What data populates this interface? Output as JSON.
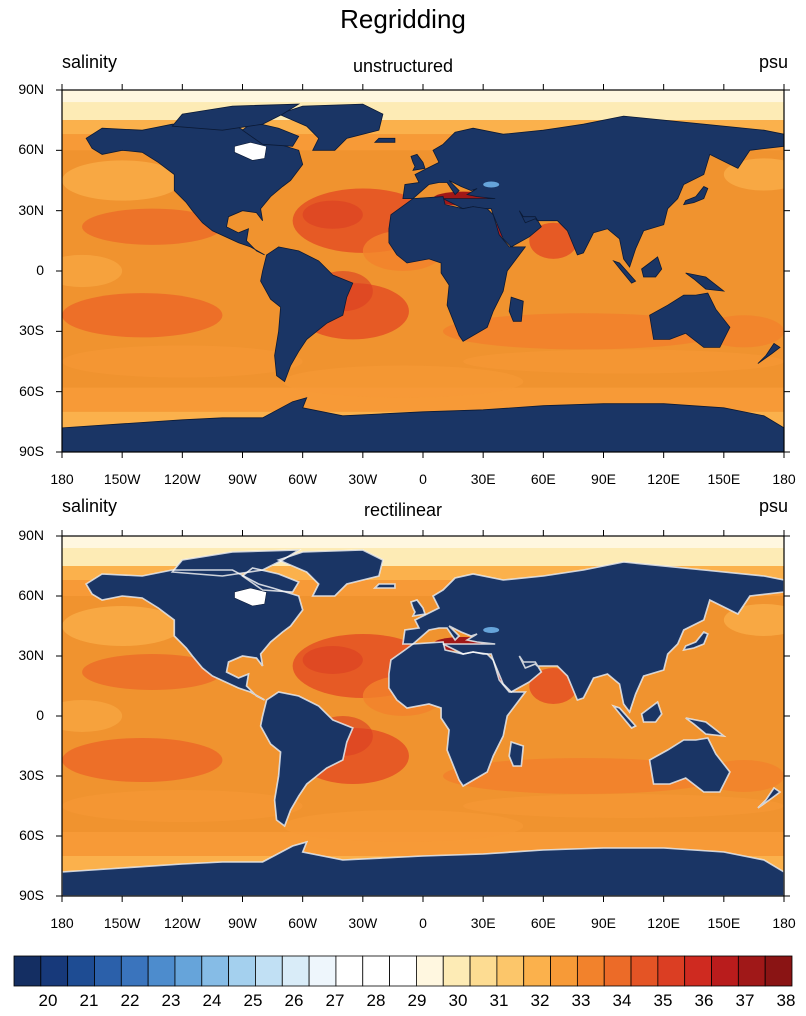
{
  "title": "Regridding",
  "panels": [
    {
      "left": "salinity",
      "center": "unstructured",
      "right": "psu"
    },
    {
      "left": "salinity",
      "center": "rectilinear",
      "right": "psu"
    }
  ],
  "lat_ticks": [
    "90N",
    "60N",
    "30N",
    "0",
    "30S",
    "60S",
    "90S"
  ],
  "lon_ticks": [
    "180",
    "150W",
    "120W",
    "90W",
    "60W",
    "30W",
    "0",
    "30E",
    "60E",
    "90E",
    "120E",
    "150E",
    "180"
  ],
  "colorbar": {
    "labels": [
      "20",
      "21",
      "22",
      "23",
      "24",
      "25",
      "26",
      "27",
      "28",
      "29",
      "30",
      "31",
      "32",
      "33",
      "34",
      "35",
      "36",
      "37",
      "38"
    ],
    "colors": [
      "#142e62",
      "#17397a",
      "#1e4c93",
      "#2b60aa",
      "#3a74bd",
      "#4d8ccd",
      "#66a4da",
      "#86bce6",
      "#a4d0ee",
      "#c1e0f4",
      "#d9ecf8",
      "#eef6fc",
      "#ffffff",
      "#ffffff",
      "#ffffff",
      "#fff7e0",
      "#fdebb5",
      "#fddc92",
      "#fcc66a",
      "#fbb14c",
      "#f79a37",
      "#f2822c",
      "#ec6b28",
      "#e45425",
      "#db3e23",
      "#cf2a20",
      "#b91c1c",
      "#a01818",
      "#8a1414"
    ]
  },
  "colors": {
    "land": "#1a3565",
    "ocean_base": "#f0932f"
  }
}
